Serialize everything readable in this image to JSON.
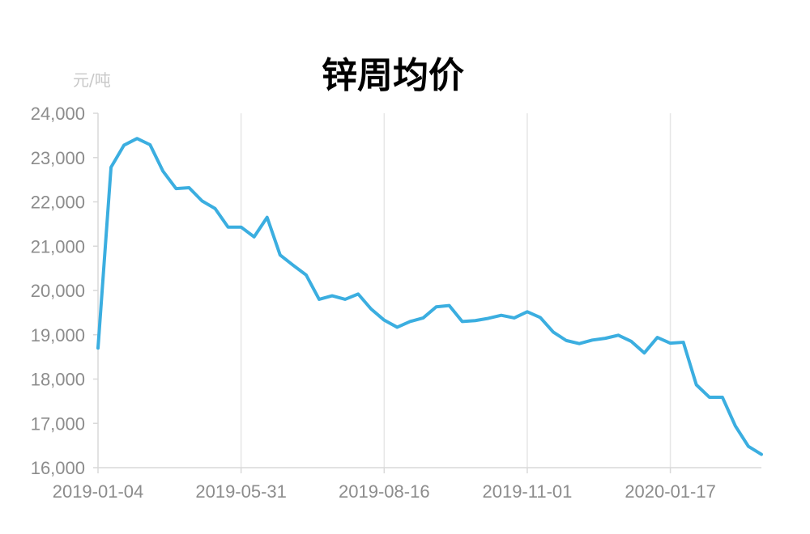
{
  "chart_data": {
    "type": "line",
    "title": "锌周均价",
    "ylabel": "元/吨",
    "xlabel": "",
    "ylim": [
      16000,
      24000
    ],
    "yticks": [
      16000,
      17000,
      18000,
      19000,
      20000,
      21000,
      22000,
      23000,
      24000
    ],
    "ytick_labels": [
      "16,000",
      "17,000",
      "18,000",
      "19,000",
      "20,000",
      "21,000",
      "22,000",
      "23,000",
      "24,000"
    ],
    "xtick_labels": [
      "2019-01-04",
      "2019-05-31",
      "2019-08-16",
      "2019-11-01",
      "2020-01-17"
    ],
    "xtick_indices": [
      0,
      11,
      22,
      33,
      44
    ],
    "grid": "vertical",
    "color": "#3BAEE0",
    "series": [
      {
        "values": [
          18700,
          22780,
          23280,
          23430,
          23290,
          22690,
          22300,
          22320,
          22020,
          21850,
          21430,
          21430,
          21210,
          21650,
          20800,
          20570,
          20350,
          19800,
          19880,
          19800,
          19920,
          19580,
          19330,
          19170,
          19300,
          19380,
          19630,
          19660,
          19300,
          19320,
          19370,
          19440,
          19380,
          19520,
          19390,
          19060,
          18870,
          18800,
          18880,
          18920,
          18990,
          18850,
          18590,
          18940,
          18810,
          18830,
          17870,
          17590,
          17590,
          16940,
          16480,
          16300
        ]
      }
    ]
  }
}
